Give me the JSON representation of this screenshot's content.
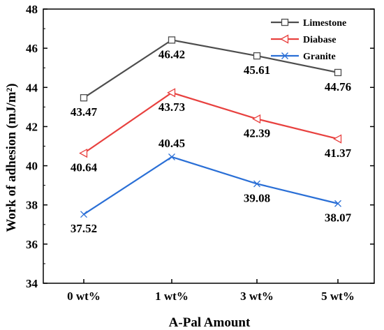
{
  "chart_data": {
    "type": "line",
    "categories": [
      "0 wt%",
      "1 wt%",
      "3 wt%",
      "5 wt%"
    ],
    "xlabel": "A-Pal Amount",
    "ylabel": "Work of adhesion (mJ/m²)",
    "ylim": [
      34,
      48
    ],
    "yticks": [
      34,
      36,
      38,
      40,
      42,
      44,
      46,
      48
    ],
    "grid": false,
    "legend_position": "top-right",
    "series": [
      {
        "name": "Limestone",
        "values": [
          43.47,
          46.42,
          45.61,
          44.76
        ],
        "labels": [
          "43.47",
          "46.42",
          "45.61",
          "44.76"
        ],
        "color": "#4d4d4d",
        "marker": "square"
      },
      {
        "name": "Diabase",
        "values": [
          40.64,
          43.73,
          42.39,
          41.37
        ],
        "labels": [
          "40.64",
          "43.73",
          "42.39",
          "41.37"
        ],
        "color": "#e8413f",
        "marker": "triangle-left"
      },
      {
        "name": "Granite",
        "values": [
          37.52,
          40.45,
          39.08,
          38.07
        ],
        "labels": [
          "37.52",
          "40.45",
          "39.08",
          "38.07"
        ],
        "color": "#2a6fd6",
        "marker": "x"
      }
    ]
  }
}
